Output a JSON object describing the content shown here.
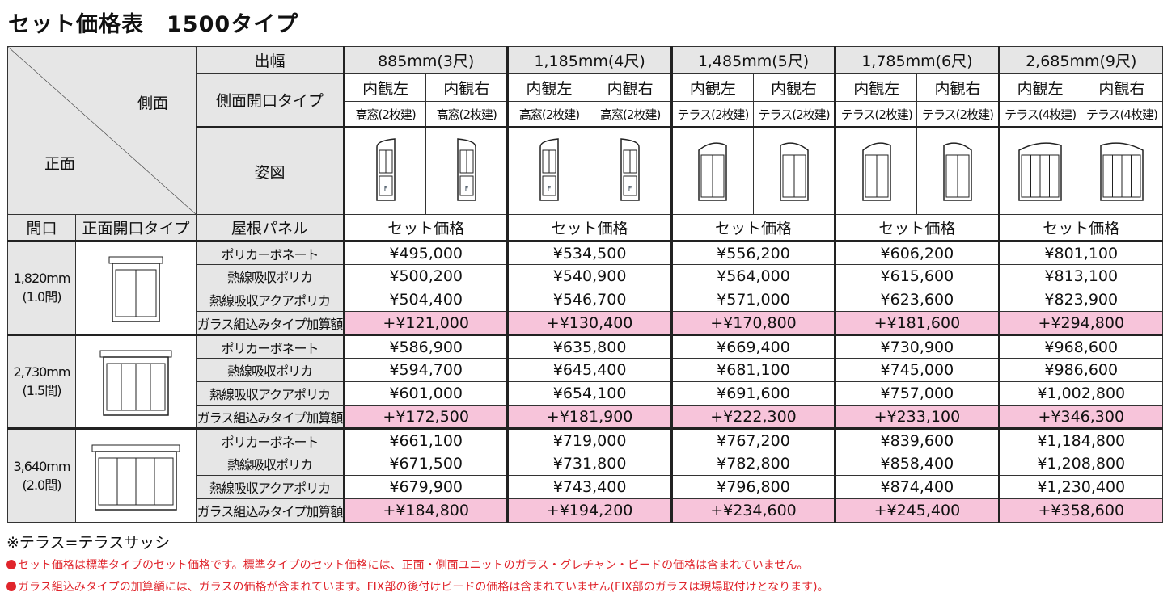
{
  "title": "セット価格表　1500タイプ",
  "header": {
    "side": "側面",
    "front": "正面",
    "projection_label": "出幅",
    "side_type_label": "側面開口タイプ",
    "figure_label": "姿図",
    "frontage_label": "間口",
    "front_type_label": "正面開口タイプ",
    "roof_label": "屋根パネル",
    "price_label": "セット価格",
    "widths": [
      "885mm(3尺)",
      "1,185mm(4尺)",
      "1,485mm(5尺)",
      "1,785mm(6尺)",
      "2,685mm(9尺)"
    ],
    "view_left": "内観左",
    "view_right": "内観右",
    "side_types": [
      "高窓(2枚建)",
      "高窓(2枚建)",
      "テラス(2枚建)",
      "テラス(2枚建)",
      "テラス(4枚建)"
    ],
    "fix_mark": "F"
  },
  "panels": [
    "ポリカーボネート",
    "熱線吸収ポリカ",
    "熱線吸収アクアポリカ",
    "ガラス組込みタイプ加算額"
  ],
  "groups": [
    {
      "frontage": "1,820mm",
      "ken": "(1.0間)",
      "prices": [
        [
          "¥495,000",
          "¥534,500",
          "¥556,200",
          "¥606,200",
          "¥801,100"
        ],
        [
          "¥500,200",
          "¥540,900",
          "¥564,000",
          "¥615,600",
          "¥813,100"
        ],
        [
          "¥504,400",
          "¥546,700",
          "¥571,000",
          "¥623,600",
          "¥823,900"
        ],
        [
          "+¥121,000",
          "+¥130,400",
          "+¥170,800",
          "+¥181,600",
          "+¥294,800"
        ]
      ]
    },
    {
      "frontage": "2,730mm",
      "ken": "(1.5間)",
      "prices": [
        [
          "¥586,900",
          "¥635,800",
          "¥669,400",
          "¥730,900",
          "¥968,600"
        ],
        [
          "¥594,700",
          "¥645,400",
          "¥681,100",
          "¥745,000",
          "¥986,600"
        ],
        [
          "¥601,000",
          "¥654,100",
          "¥691,600",
          "¥757,000",
          "¥1,002,800"
        ],
        [
          "+¥172,500",
          "+¥181,900",
          "+¥222,300",
          "+¥233,100",
          "+¥346,300"
        ]
      ]
    },
    {
      "frontage": "3,640mm",
      "ken": "(2.0間)",
      "prices": [
        [
          "¥661,100",
          "¥719,000",
          "¥767,200",
          "¥839,600",
          "¥1,184,800"
        ],
        [
          "¥671,500",
          "¥731,800",
          "¥782,800",
          "¥858,400",
          "¥1,208,800"
        ],
        [
          "¥679,900",
          "¥743,400",
          "¥796,800",
          "¥874,400",
          "¥1,230,400"
        ],
        [
          "+¥184,800",
          "+¥194,200",
          "+¥234,600",
          "+¥245,400",
          "+¥358,600"
        ]
      ]
    }
  ],
  "notes": {
    "terrace": "※テラス=テラスサッシ",
    "n1": "セット価格は標準タイプのセット価格です。標準タイプのセット価格には、正面・側面ユニットのガラス・グレチャン・ビードの価格は含まれていません。",
    "n2": "ガラス組込みタイプの加算額には、ガラスの価格が含まれています。FIX部の後付けビードの価格は含まれていません(FIX部のガラスは現場取付けとなります)。"
  },
  "colors": {
    "addon_row": "#f7c4da",
    "header_bg": "#e6e6e6",
    "note_red": "#e0242b"
  }
}
